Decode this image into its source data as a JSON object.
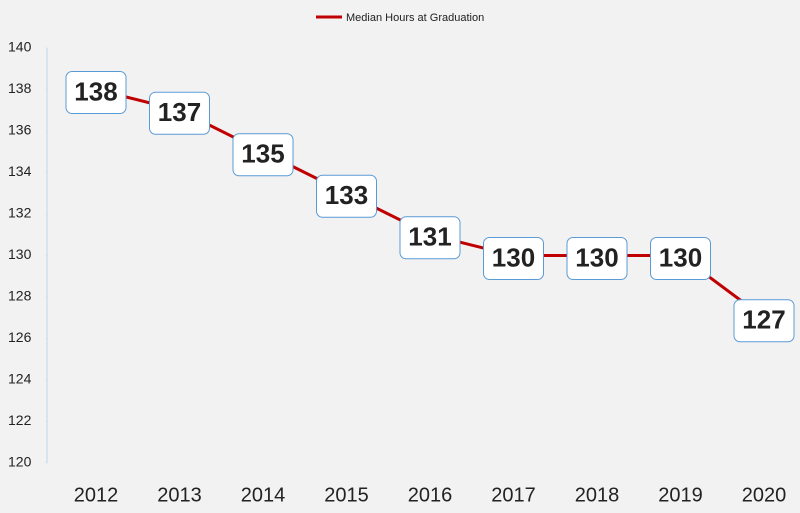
{
  "chart_data": {
    "type": "line",
    "categories": [
      "2012",
      "2013",
      "2014",
      "2015",
      "2016",
      "2017",
      "2018",
      "2019",
      "2020"
    ],
    "series": [
      {
        "name": "Median Hours at Graduation",
        "color": "#c00000",
        "values": [
          138,
          137,
          135,
          133,
          131,
          130,
          130,
          130,
          127
        ]
      }
    ],
    "ylim": [
      120,
      140
    ],
    "yticks": [
      120,
      122,
      124,
      126,
      128,
      130,
      132,
      134,
      136,
      138,
      140
    ],
    "grid": false,
    "legend": "top",
    "data_labels": true
  }
}
